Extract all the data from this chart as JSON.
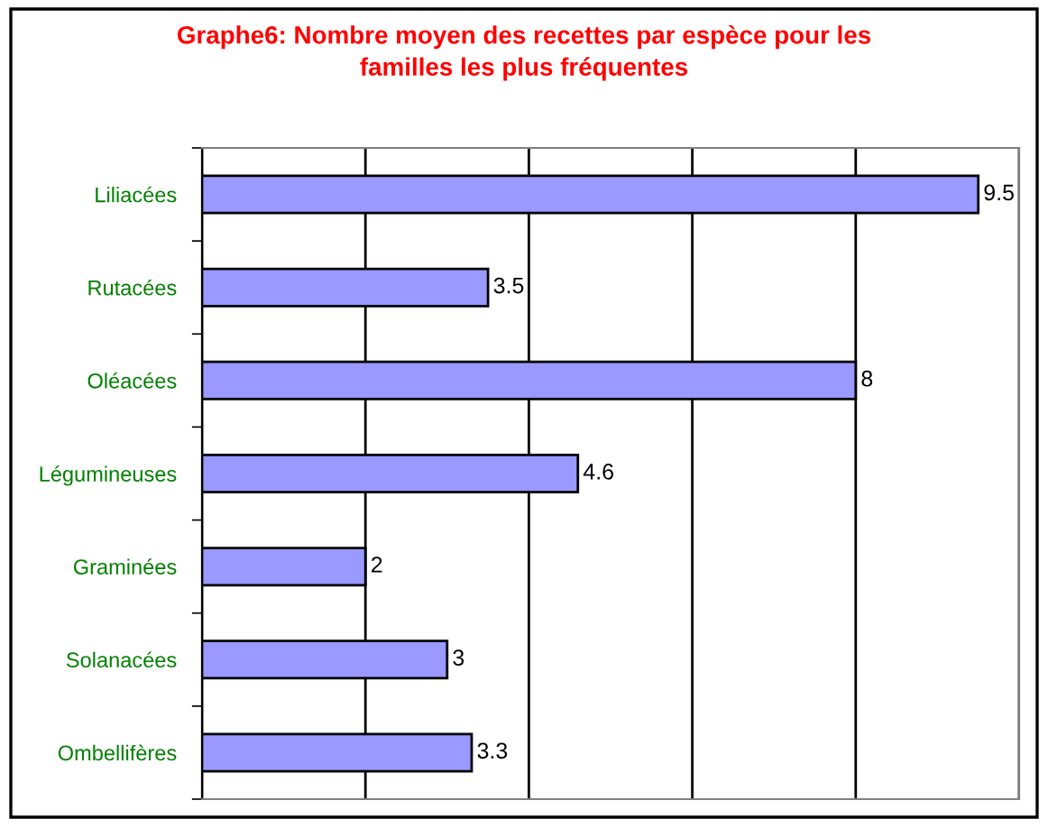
{
  "chart_data": {
    "type": "bar",
    "orientation": "horizontal",
    "title": "Graphe6: Nombre moyen des recettes par espèce pour les\nfamilles les plus fréquentes",
    "categories": [
      "Liliacées",
      "Rutacées",
      "Oléacées",
      "Légumineuses",
      "Graminées",
      "Solanacées",
      "Ombellifères"
    ],
    "values": [
      9.5,
      3.5,
      8,
      4.6,
      2,
      3,
      3.3
    ],
    "color": "#9999ff",
    "xlim": [
      0,
      10
    ],
    "xticks": [
      {
        "value": 0,
        "label": null
      },
      {
        "value": 2,
        "label": null
      },
      {
        "value": 4,
        "label": null
      },
      {
        "value": 6,
        "label": null
      },
      {
        "value": 8,
        "label": null
      },
      {
        "value": 10,
        "label": null
      }
    ],
    "grid": "x",
    "data_labels": true,
    "tick_labels": "y"
  }
}
